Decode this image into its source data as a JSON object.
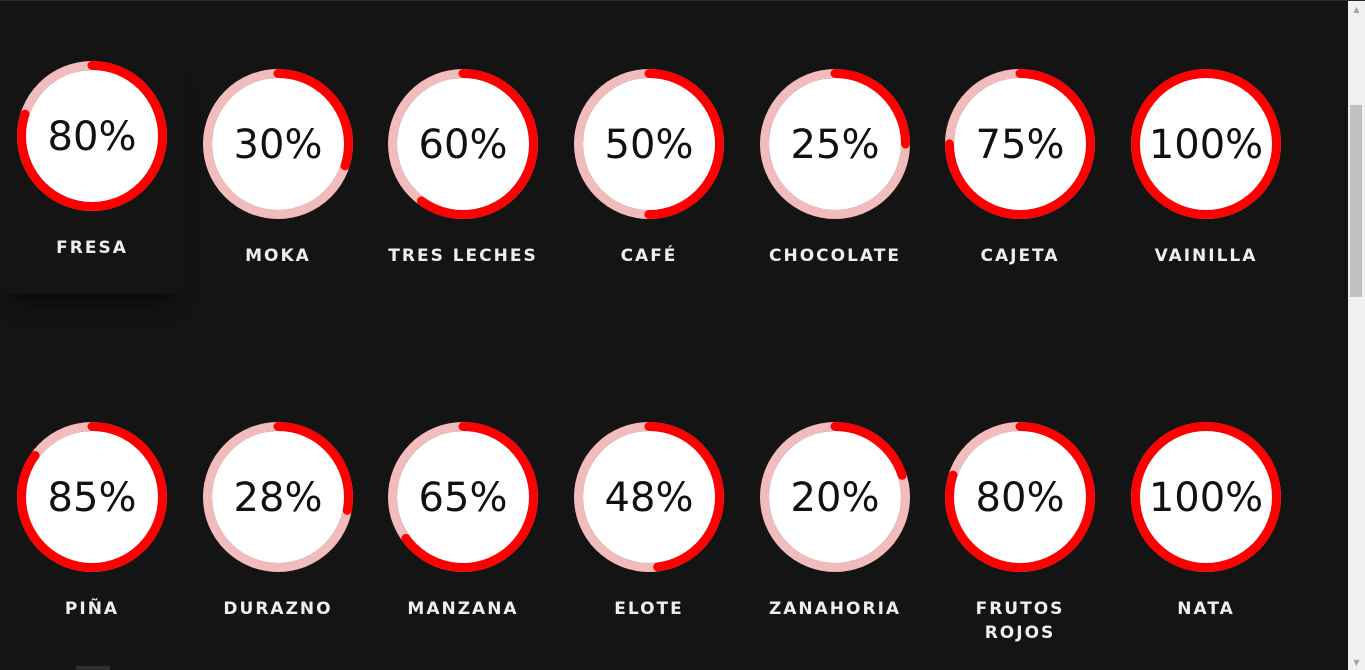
{
  "colors": {
    "background": "#141414",
    "ring_fill": "#ff0000",
    "ring_track": "#f2bcbc",
    "label": "#eeeeee"
  },
  "flavors": [
    {
      "name": "FRESA",
      "percent": "80%",
      "value": 80
    },
    {
      "name": "MOKA",
      "percent": "30%",
      "value": 30
    },
    {
      "name": "TRES LECHES",
      "percent": "60%",
      "value": 60
    },
    {
      "name": "CAFÉ",
      "percent": "50%",
      "value": 50
    },
    {
      "name": "CHOCOLATE",
      "percent": "25%",
      "value": 25
    },
    {
      "name": "CAJETA",
      "percent": "75%",
      "value": 75
    },
    {
      "name": "VAINILLA",
      "percent": "100%",
      "value": 100
    },
    {
      "name": "PIÑA",
      "percent": "85%",
      "value": 85
    },
    {
      "name": "DURAZNO",
      "percent": "28%",
      "value": 28
    },
    {
      "name": "MANZANA",
      "percent": "65%",
      "value": 65
    },
    {
      "name": "ELOTE",
      "percent": "48%",
      "value": 48
    },
    {
      "name": "ZANAHORIA",
      "percent": "20%",
      "value": 20
    },
    {
      "name": "FRUTOS ROJOS",
      "percent": "80%",
      "value": 80
    },
    {
      "name": "NATA",
      "percent": "100%",
      "value": 100
    }
  ],
  "scrollbar": {
    "up_icon": "triangle-up",
    "down_icon": "triangle-down"
  }
}
